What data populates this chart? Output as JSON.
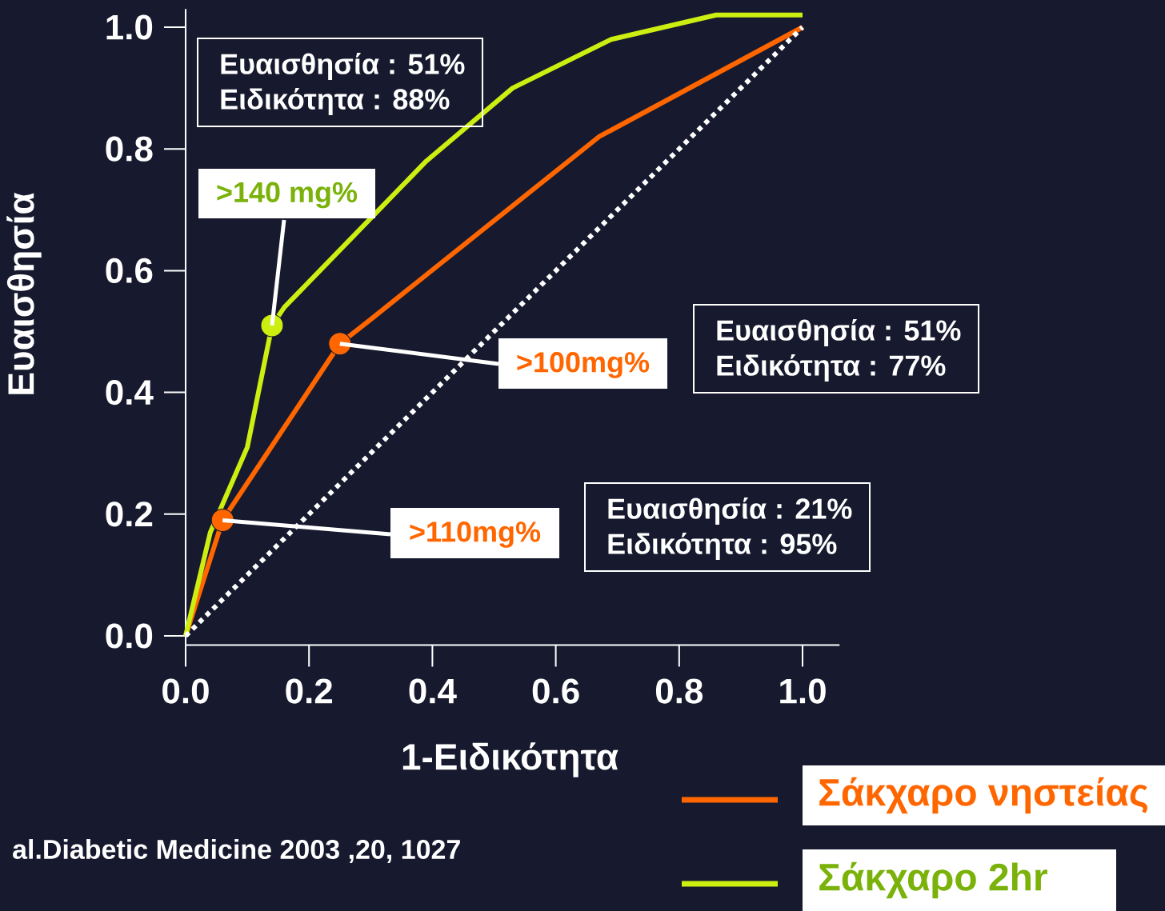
{
  "chart_data": {
    "type": "line",
    "xlabel": "1-Ειδικότητα",
    "ylabel": "Ευαισθησία",
    "xlim": [
      0,
      1.06
    ],
    "ylim": [
      -0.015,
      1.03
    ],
    "xticks": [
      {
        "value": 0,
        "label": "0.0"
      },
      0.2,
      0.4,
      0.6,
      0.8,
      {
        "value": 1,
        "label": "1.0"
      }
    ],
    "yticks": [
      {
        "value": 0,
        "label": "0.0"
      },
      0.2,
      0.4,
      0.6,
      0.8,
      {
        "value": 1,
        "label": "1.0"
      }
    ],
    "series": [
      {
        "name": "Σάκχαρο νηστείας",
        "color": "#ff6600",
        "x": [
          0,
          0.06,
          0.25,
          0.3,
          0.67,
          1.0
        ],
        "values": [
          0,
          0.19,
          0.48,
          0.52,
          0.82,
          1.0
        ]
      },
      {
        "name": "Σάκχαρο 2hr",
        "color": "#ccee11",
        "x": [
          0,
          0.04,
          0.1,
          0.14,
          0.16,
          0.39,
          0.53,
          0.69,
          0.86,
          1.0
        ],
        "values": [
          0,
          0.17,
          0.31,
          0.51,
          0.54,
          0.78,
          0.9,
          0.98,
          1.02,
          1.02
        ]
      },
      {
        "color": "#ffffff",
        "line_style": "dotted",
        "x": [
          0,
          1
        ],
        "values": [
          0,
          1
        ]
      },
      {
        "type": "scatter",
        "marker": "circle",
        "color": "#ccee11",
        "x": [
          0.14
        ],
        "values": [
          0.51
        ]
      },
      {
        "type": "scatter",
        "marker": "circle",
        "color": "#ff6600",
        "x": [
          0.06,
          0.25
        ],
        "values": [
          0.19,
          0.48
        ]
      }
    ],
    "line_style": "solid",
    "legend": "bottom right",
    "annotations": [
      {
        "text": ">140 mg%",
        "x": 0.14,
        "y": 0.51
      },
      {
        "text": ">100mg%",
        "x": 0.25,
        "y": 0.48
      },
      {
        "text": ">110mg%",
        "x": 0.06,
        "y": 0.19
      },
      "Ευαισθησία : 51%",
      "Ειδικότητα :  88%",
      "Ευαισθησία : 51%",
      "Ειδικότητα :  77%",
      "Ευαισθησία : 21%",
      "Ειδικότητα :  95%",
      "al.Diabetic Medicine 2003 ,20, 1027"
    ]
  }
}
